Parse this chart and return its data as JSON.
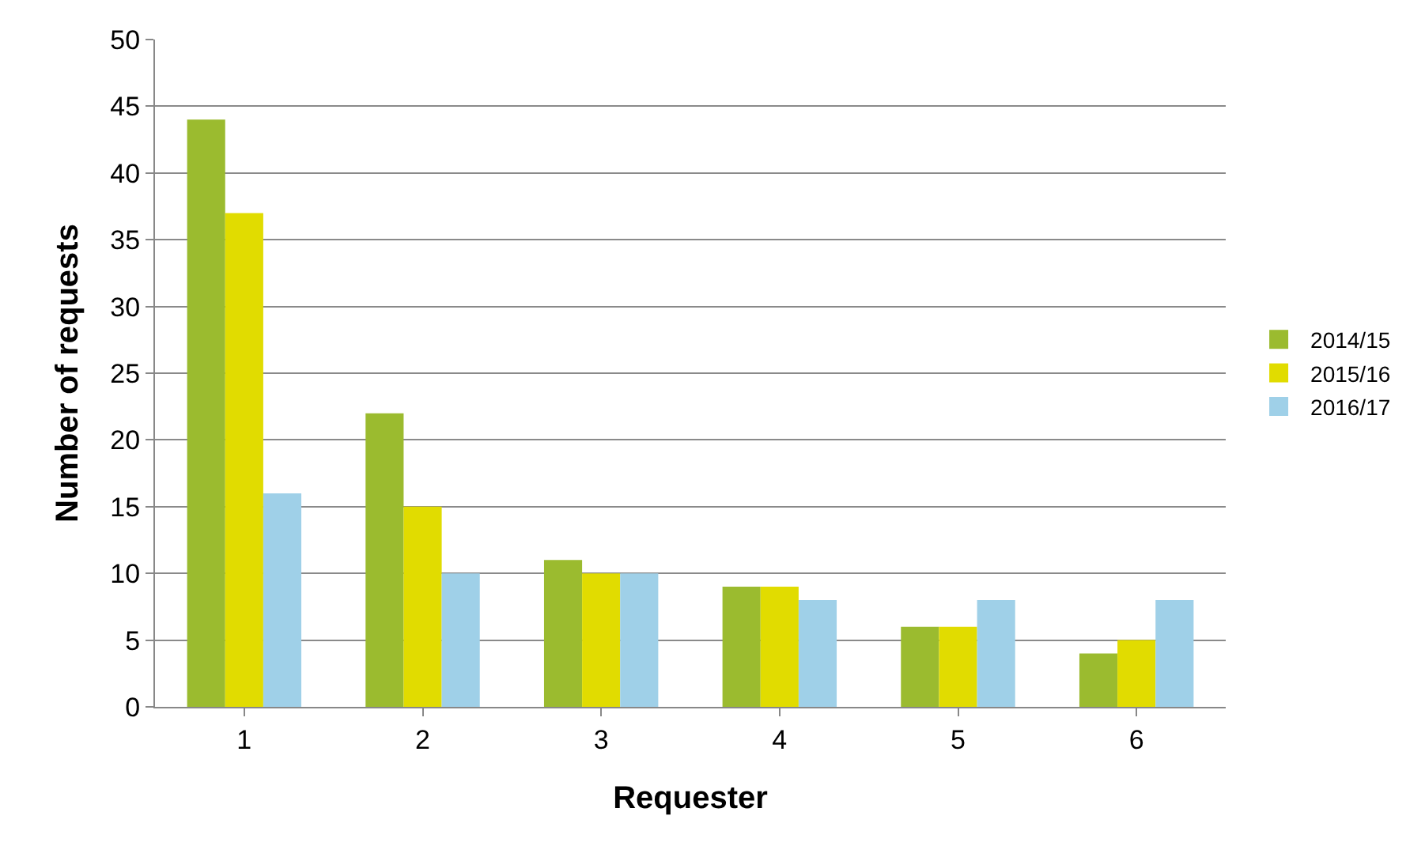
{
  "chart_data": {
    "type": "bar",
    "xlabel": "Requester",
    "ylabel": "Number of requests",
    "categories": [
      "1",
      "2",
      "3",
      "4",
      "5",
      "6"
    ],
    "series": [
      {
        "name": "2014/15",
        "color": "#9bbb2f",
        "values": [
          44,
          22,
          11,
          9,
          6,
          4
        ]
      },
      {
        "name": "2015/16",
        "color": "#e1dc00",
        "values": [
          37,
          15,
          10,
          9,
          6,
          5
        ]
      },
      {
        "name": "2016/17",
        "color": "#9fd0e8",
        "values": [
          16,
          10,
          10,
          8,
          8,
          8
        ]
      }
    ],
    "ylim": [
      0,
      50
    ],
    "yticks": [
      0,
      5,
      10,
      15,
      20,
      25,
      30,
      35,
      40,
      45,
      50
    ],
    "grid": "y",
    "legend": "right"
  }
}
